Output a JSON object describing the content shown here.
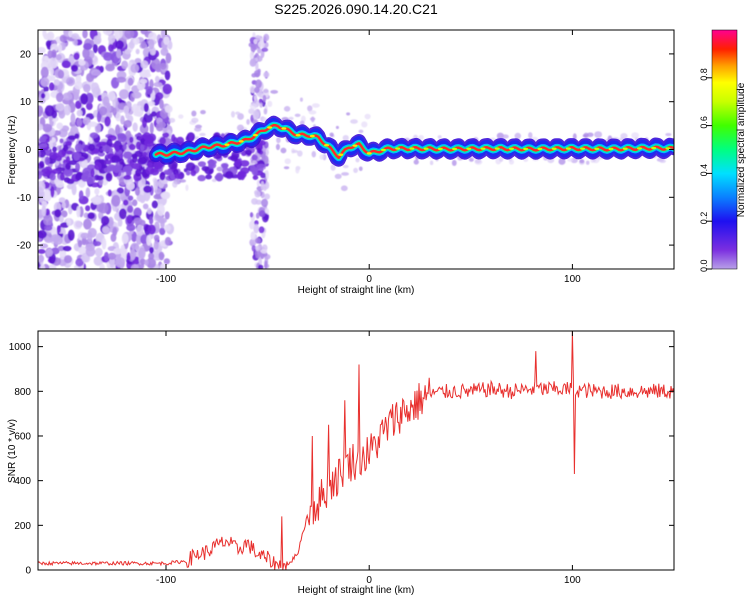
{
  "title": "S225.2026.090.14.20.C21",
  "chart_data": [
    {
      "type": "heatmap",
      "xlabel": "Height of straight line (km)",
      "ylabel": "Frequency (Hz)",
      "xlim": [
        -163,
        150
      ],
      "ylim": [
        -25,
        25
      ],
      "x_ticks": [
        -100,
        0,
        100
      ],
      "y_ticks": [
        -20,
        -10,
        0,
        10,
        20
      ],
      "tone_ridge": {
        "x": [
          -100,
          -90,
          -80,
          -70,
          -60,
          -50,
          -45,
          -40,
          -35,
          -30,
          -25,
          -20,
          -15,
          -10,
          -5,
          0,
          10,
          20,
          40,
          60,
          80,
          100,
          120,
          140,
          150
        ],
        "y": [
          -1.0,
          -0.5,
          0.5,
          1.0,
          2.0,
          4.5,
          5.0,
          4.0,
          3.0,
          3.0,
          2.5,
          0.5,
          -1.5,
          0.5,
          1.0,
          -0.8,
          0.2,
          0.2,
          0.1,
          0.2,
          0.1,
          0.2,
          0.1,
          0.3,
          0.2
        ]
      },
      "colorbar": {
        "label": "Normalized spectral amplitude",
        "range": [
          0,
          1
        ],
        "ticks": [
          "0.0",
          "0.2",
          "0.4",
          "0.6",
          "0.8"
        ]
      }
    },
    {
      "type": "line",
      "xlabel": "Height of straight line (km)",
      "ylabel": "SNR (10 * v/v)",
      "xlim": [
        -163,
        150
      ],
      "ylim": [
        0,
        1070
      ],
      "x_ticks": [
        -100,
        0,
        100
      ],
      "y_ticks": [
        0,
        200,
        400,
        600,
        800,
        1000
      ],
      "color": "#e8302e",
      "series": [
        {
          "name": "SNR",
          "x": [
            -163,
            -140,
            -120,
            -100,
            -90,
            -85,
            -80,
            -75,
            -70,
            -65,
            -60,
            -55,
            -50,
            -45,
            -40,
            -35,
            -30,
            -25,
            -20,
            -15,
            -10,
            -5,
            0,
            5,
            10,
            15,
            20,
            25,
            30,
            40,
            50,
            60,
            70,
            80,
            90,
            100,
            110,
            120,
            130,
            140,
            150
          ],
          "values": [
            30,
            30,
            30,
            30,
            40,
            70,
            80,
            110,
            130,
            90,
            120,
            70,
            50,
            20,
            20,
            80,
            260,
            300,
            380,
            420,
            480,
            500,
            520,
            590,
            650,
            700,
            720,
            760,
            790,
            800,
            800,
            810,
            800,
            810,
            810,
            810,
            800,
            800,
            800,
            800,
            800
          ]
        }
      ],
      "spikes": [
        {
          "x": -43,
          "y": 240
        },
        {
          "x": -28,
          "y": 600
        },
        {
          "x": -20,
          "y": 650
        },
        {
          "x": -12,
          "y": 760
        },
        {
          "x": -5,
          "y": 920
        },
        {
          "x": 82,
          "y": 980
        },
        {
          "x": 100,
          "y": 1070
        },
        {
          "x": 101,
          "y": 430
        }
      ]
    }
  ]
}
